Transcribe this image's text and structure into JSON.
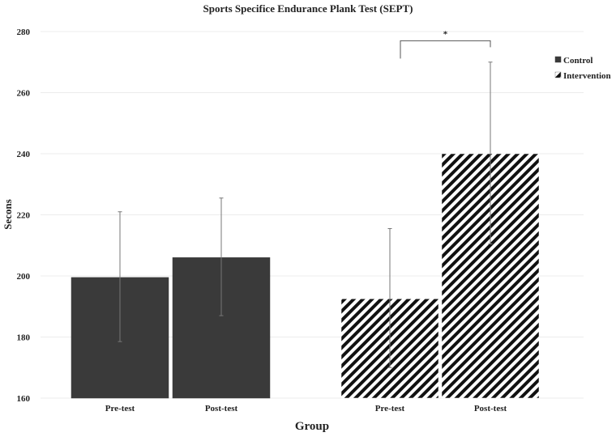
{
  "chart_data": {
    "type": "bar",
    "title": "Sports Specifice Endurance Plank Test (SEPT)",
    "xlabel": "Group",
    "ylabel": "Secons",
    "ylim": [
      160,
      280
    ],
    "yticks": [
      160,
      180,
      200,
      220,
      240,
      260,
      280
    ],
    "grid": true,
    "legend_position": "top-right",
    "series": [
      {
        "name": "Control",
        "pattern": "solid",
        "color": "#3a3a3a",
        "categories": [
          "Pre-test",
          "Post-test"
        ],
        "values": [
          199.5,
          206
        ],
        "error_low": [
          178.5,
          187
        ],
        "error_high": [
          221,
          225.5
        ]
      },
      {
        "name": "Intervention",
        "pattern": "diagonal-stripes",
        "color": "#111111",
        "categories": [
          "Pre-test",
          "Post-test"
        ],
        "values": [
          192.5,
          240
        ],
        "error_low": [
          170,
          210.5
        ],
        "error_high": [
          215.5,
          270
        ]
      }
    ],
    "annotations": [
      {
        "text": "*",
        "between": [
          "Intervention Pre-test",
          "Intervention Post-test"
        ],
        "y": 277
      }
    ]
  }
}
